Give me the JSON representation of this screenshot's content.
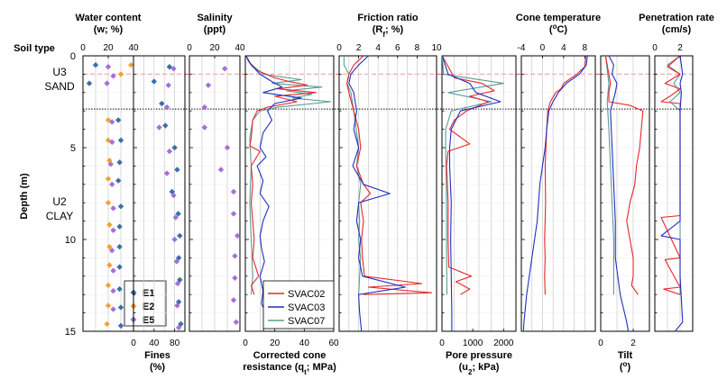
{
  "figure": {
    "soil_type_label": "Soil type",
    "depth_label": "Depth (m)",
    "layers": [
      {
        "code": "U3",
        "name": "SAND"
      },
      {
        "code": "U2",
        "name": "CLAY"
      }
    ],
    "depth_ticks": [
      "0",
      "5",
      "10",
      "15"
    ],
    "colors": {
      "E1": "#3b6fa8",
      "E2": "#f5a032",
      "E5": "#a470d8",
      "SVAC02": "#e8262a",
      "SVAC03": "#1f2fbf",
      "SVAC07": "#5a9b96",
      "red_dash": "#ee5555",
      "grid": "#c8c8c8"
    }
  },
  "chart_data": [
    {
      "type": "scatter",
      "id": "water",
      "title": "Water content",
      "subtitle": "(w; %)",
      "xlim": [
        0,
        40
      ],
      "ticks": [
        "0",
        "20",
        "40"
      ],
      "series": [
        {
          "name": "E1",
          "marker": "diamond",
          "depth": [
            0.5,
            1.5,
            3.5,
            4.6,
            5.8,
            6.8,
            8.2,
            9.3,
            10.4,
            11.5,
            12.7,
            13.7,
            14.7
          ],
          "values": [
            10,
            5,
            28,
            30,
            29,
            28,
            30,
            29,
            29,
            29,
            29,
            30,
            30
          ]
        },
        {
          "name": "E2",
          "marker": "diamond",
          "depth": [
            0.5,
            1.0,
            3.5,
            4.6,
            5.7,
            6.7,
            8.0,
            9.2,
            10.4,
            11.4,
            12.5,
            13.6,
            14.6
          ],
          "values": [
            38,
            30,
            20,
            20,
            21,
            20,
            20,
            21,
            21,
            21,
            20,
            20,
            19
          ]
        },
        {
          "name": "E5",
          "marker": "diamond",
          "depth": [
            0.6,
            1.1,
            1.5,
            3.6,
            4.7,
            5.9,
            7.0,
            8.3,
            9.5,
            10.6,
            11.7,
            12.8,
            13.8
          ],
          "values": [
            20,
            24,
            19,
            23,
            23,
            22,
            23,
            24,
            24,
            23,
            24,
            24,
            24
          ]
        }
      ],
      "legend": [
        "E1",
        "E2",
        "E5"
      ]
    },
    {
      "type": "scatter",
      "id": "fines",
      "xlabel": "Fines",
      "xunit": "(%)",
      "xlim": [
        0,
        100
      ],
      "ticks": [
        "0",
        "40",
        "80"
      ],
      "series": [
        {
          "name": "E1",
          "marker": "diamond",
          "depth": [
            0.6,
            1.4,
            2.6,
            3.8,
            5.0,
            6.2,
            7.4,
            8.6,
            9.8,
            11.0,
            12.2,
            13.4,
            14.6
          ],
          "values": [
            70,
            40,
            55,
            62,
            80,
            85,
            75,
            87,
            90,
            88,
            90,
            88,
            92
          ]
        },
        {
          "name": "E5",
          "marker": "diamond",
          "depth": [
            0.7,
            1.6,
            2.8,
            3.9,
            5.2,
            6.4,
            7.6,
            8.8,
            10.0,
            11.2,
            12.4,
            13.6,
            14.8
          ],
          "values": [
            78,
            68,
            65,
            50,
            70,
            65,
            78,
            82,
            80,
            84,
            86,
            85,
            88
          ]
        }
      ]
    },
    {
      "type": "scatter",
      "id": "salinity",
      "title": "Salinity",
      "subtitle": "(ppt)",
      "xlim": [
        0,
        40
      ],
      "ticks": [
        "0",
        "20",
        "40"
      ],
      "series": [
        {
          "name": "E5",
          "marker": "diamond",
          "depth": [
            0.7,
            1.6,
            2.8,
            3.9,
            5.0,
            6.2,
            7.4,
            8.6,
            9.8,
            10.9,
            12.1,
            13.3,
            14.5
          ],
          "values": [
            28,
            15,
            12,
            12,
            30,
            25,
            35,
            35,
            38,
            36,
            36,
            35,
            37
          ]
        }
      ]
    },
    {
      "type": "line",
      "id": "qt",
      "xlabel": "Corrected cone",
      "xlabel2": "resistance (q",
      "xsub": "t",
      "xunit": "; MPa)",
      "xlim": [
        0,
        60
      ],
      "ticks": [
        "0",
        "20",
        "40",
        "60"
      ],
      "legend": [
        "SVAC02",
        "SVAC03",
        "SVAC07"
      ],
      "series": [
        {
          "name": "SVAC07",
          "depth": [
            0,
            0.3,
            0.6,
            1.0,
            1.3,
            1.5,
            1.7,
            1.9,
            2.1,
            2.3,
            2.5,
            2.8,
            3.0,
            3.5,
            4.5,
            6,
            8,
            10,
            12,
            13
          ],
          "values": [
            0.5,
            2,
            6,
            12,
            38,
            18,
            52,
            28,
            45,
            32,
            58,
            22,
            10,
            5,
            3,
            4,
            3,
            4,
            5,
            4
          ]
        },
        {
          "name": "SVAC02",
          "depth": [
            0,
            0.4,
            0.8,
            1.2,
            1.4,
            1.6,
            1.8,
            2.0,
            2.2,
            2.5,
            2.8,
            3.0,
            3.5,
            4.5,
            4.9,
            5.2,
            6,
            7,
            8,
            9,
            10,
            11,
            12,
            12.5,
            13
          ],
          "values": [
            0.5,
            3,
            8,
            20,
            30,
            42,
            22,
            48,
            20,
            35,
            15,
            8,
            5,
            4,
            3,
            10,
            4,
            5,
            4,
            5,
            6,
            5,
            9,
            4,
            6
          ]
        },
        {
          "name": "SVAC03",
          "depth": [
            0,
            0.5,
            1.0,
            1.4,
            1.7,
            2.0,
            2.3,
            2.6,
            3.0,
            3.5,
            4.2,
            5.0,
            5.5,
            6.0,
            6.8,
            7.5,
            8.2,
            9.0,
            9.8,
            10.5,
            11.2,
            12.0,
            12.8,
            13.5,
            14.2,
            15.0
          ],
          "values": [
            0.5,
            4,
            10,
            18,
            25,
            12,
            38,
            20,
            15,
            18,
            12,
            10,
            14,
            8,
            12,
            10,
            16,
            12,
            10,
            11,
            13,
            10,
            12,
            11,
            15,
            12
          ]
        }
      ]
    },
    {
      "type": "line",
      "id": "rf",
      "title": "Friction ratio",
      "subtitle": "(R",
      "subsub": "f",
      "subtail": "; %)",
      "xlim": [
        0,
        10
      ],
      "ticks": [
        "0",
        "2",
        "4",
        "6",
        "8",
        "10"
      ],
      "series": [
        {
          "name": "SVAC07",
          "depth": [
            0,
            0.5,
            1.0,
            1.5,
            2.0,
            3,
            5,
            6,
            7,
            8,
            9,
            10,
            11,
            12,
            13
          ],
          "values": [
            0.5,
            0.5,
            1.0,
            0.8,
            1.2,
            1.5,
            2.0,
            1.8,
            2.2,
            2.0,
            2.1,
            2.0,
            2.2,
            2.1,
            2.0
          ]
        },
        {
          "name": "SVAC02",
          "depth": [
            0,
            0.5,
            1.0,
            1.5,
            2.0,
            3,
            4,
            5,
            6,
            7,
            7.5,
            8,
            9,
            10,
            11,
            12,
            12.4,
            12.6,
            12.9,
            13
          ],
          "values": [
            2.5,
            1.5,
            1.0,
            0.8,
            1.0,
            1.5,
            2.0,
            2.2,
            1.8,
            2.5,
            3.2,
            2.2,
            2.5,
            2.3,
            2.4,
            2.6,
            8.5,
            3.0,
            9.5,
            2.5
          ]
        },
        {
          "name": "SVAC03",
          "depth": [
            0,
            0.5,
            1.0,
            1.5,
            2.0,
            3,
            4,
            5,
            6,
            7,
            7.5,
            8,
            9,
            10,
            11,
            12,
            12.6,
            13,
            14,
            15
          ],
          "values": [
            3.0,
            2.0,
            1.2,
            1.0,
            1.5,
            1.8,
            1.5,
            2.0,
            1.4,
            2.5,
            5.2,
            2.0,
            1.8,
            2.2,
            2.0,
            2.4,
            6.8,
            2.0,
            2.1,
            2.3
          ]
        }
      ]
    },
    {
      "type": "line",
      "id": "u2",
      "xlabel": "Pore pressure",
      "xlabel2": "(u",
      "xsub": "2",
      "xunit": "; kPa)",
      "xlim": [
        0,
        2400
      ],
      "ticks": [
        "0",
        "1000",
        "2000"
      ],
      "series": [
        {
          "name": "SVAC07",
          "depth": [
            0,
            1.0,
            1.5,
            2.0,
            2.5,
            3.0,
            4,
            5,
            7,
            9,
            11,
            13
          ],
          "values": [
            10,
            50,
            2000,
            200,
            1600,
            300,
            120,
            120,
            140,
            150,
            150,
            160
          ]
        },
        {
          "name": "SVAC02",
          "depth": [
            0,
            1.2,
            1.5,
            1.9,
            2.2,
            2.5,
            3.0,
            3.5,
            4.0,
            4.8,
            5.2,
            6,
            8,
            10,
            11.5,
            12.0,
            12.3,
            12.7,
            13.0
          ],
          "values": [
            10,
            400,
            1300,
            1700,
            900,
            1500,
            800,
            400,
            250,
            900,
            200,
            150,
            200,
            200,
            220,
            950,
            450,
            900,
            600
          ]
        },
        {
          "name": "SVAC03",
          "depth": [
            0,
            1.0,
            1.5,
            2.0,
            2.5,
            3.0,
            4,
            5,
            6,
            8,
            10,
            12,
            14,
            15
          ],
          "values": [
            10,
            200,
            900,
            1100,
            1900,
            600,
            300,
            250,
            250,
            300,
            280,
            300,
            320,
            320
          ]
        }
      ]
    },
    {
      "type": "line",
      "id": "temp",
      "title": "Cone temperature",
      "subtitle": "(",
      "subsup": "o",
      "subtail": "C)",
      "xlim": [
        -4,
        10
      ],
      "ticks": [
        "-4",
        "0",
        "4",
        "8"
      ],
      "series": [
        {
          "name": "SVAC02",
          "depth": [
            0,
            0.6,
            1.0,
            1.5,
            1.8,
            2.0,
            2.5,
            3.0,
            4.0,
            6.0,
            8.0,
            10.0,
            11.0,
            12.0,
            13.0
          ],
          "values": [
            8.2,
            8.0,
            6.5,
            4.0,
            3.5,
            2.5,
            1.5,
            1.0,
            0.8,
            0.5,
            0.6,
            0.4,
            0.5,
            0.4,
            0.5
          ]
        },
        {
          "name": "SVAC03",
          "depth": [
            0,
            0.5,
            1.0,
            1.5,
            2.0,
            2.5,
            3.0,
            4.0,
            5.0,
            7.0,
            9.0,
            11.0,
            13.0,
            14.5,
            15.0
          ],
          "values": [
            8.5,
            8.3,
            7.0,
            4.5,
            3.0,
            2.0,
            1.2,
            0.8,
            0.5,
            -0.5,
            -1.0,
            -2.0,
            -3.0,
            -3.5,
            -3.6
          ]
        }
      ]
    },
    {
      "type": "line",
      "id": "tilt",
      "xlabel": "Tilt",
      "xunit": "(",
      "xsup": "o",
      "xtail": ")",
      "xlim": [
        0,
        3
      ],
      "ticks": [
        "0",
        "2"
      ],
      "series": [
        {
          "name": "SVAC07",
          "depth": [
            0,
            1.5,
            2.5,
            4,
            6,
            8,
            10,
            12,
            13
          ],
          "values": [
            0.3,
            0.5,
            0.4,
            0.5,
            0.6,
            0.7,
            0.8,
            0.8,
            0.8
          ]
        },
        {
          "name": "SVAC02",
          "depth": [
            0,
            1.0,
            1.5,
            2.0,
            2.5,
            2.7,
            3.0,
            4.0,
            5.0,
            6.0,
            7.0,
            8.0,
            9.0,
            10,
            11,
            12,
            12.5,
            13.0
          ],
          "values": [
            0.3,
            0.5,
            0.6,
            0.5,
            0.5,
            1.8,
            2.6,
            2.5,
            2.4,
            2.2,
            2.1,
            1.8,
            1.6,
            1.8,
            2.0,
            2.0,
            1.9,
            2.3
          ]
        },
        {
          "name": "SVAC03",
          "depth": [
            0,
            0.5,
            1.0,
            1.5,
            2.0,
            3.0,
            5.0,
            7.0,
            9.0,
            11.0,
            13.0,
            14.5,
            15.0
          ],
          "values": [
            0.5,
            0.8,
            0.7,
            1.0,
            0.9,
            0.6,
            0.7,
            0.8,
            0.9,
            0.9,
            1.2,
            1.6,
            1.7
          ]
        }
      ]
    },
    {
      "type": "line",
      "id": "rate",
      "title": "Penetration rate",
      "subtitle": "(cm/s)",
      "xlim": [
        0,
        3
      ],
      "ticks": [
        "0",
        "2"
      ],
      "series": [
        {
          "name": "SVAC07",
          "depth": [
            0,
            0.5,
            1.0,
            1.5,
            2.0,
            2.5,
            3,
            5,
            7,
            9,
            11,
            13
          ],
          "values": [
            2.0,
            1.0,
            2.0,
            1.5,
            2.0,
            1.2,
            2.0,
            2.0,
            2.0,
            2.0,
            2.0,
            2.0
          ]
        },
        {
          "name": "SVAC02",
          "depth": [
            0,
            0.6,
            1.0,
            1.5,
            1.8,
            2.2,
            2.5,
            2.6,
            3.0,
            8.7,
            8.8,
            11.0,
            11.1,
            12.6,
            12.7,
            13.0
          ],
          "values": [
            2.0,
            1.0,
            2.0,
            0.8,
            2.0,
            1.2,
            0.5,
            2.0,
            2.0,
            2.0,
            0.5,
            2.0,
            0.8,
            2.0,
            0.7,
            2.0
          ]
        },
        {
          "name": "SVAC03",
          "depth": [
            0,
            1.0,
            1.5,
            2.0,
            3.0,
            5,
            7,
            9,
            9.8,
            10,
            12,
            14.5,
            15
          ],
          "values": [
            2.0,
            2.2,
            2.0,
            2.1,
            2.0,
            2.0,
            2.0,
            2.0,
            0.5,
            2.0,
            2.0,
            2.2,
            1.6
          ]
        }
      ]
    }
  ]
}
